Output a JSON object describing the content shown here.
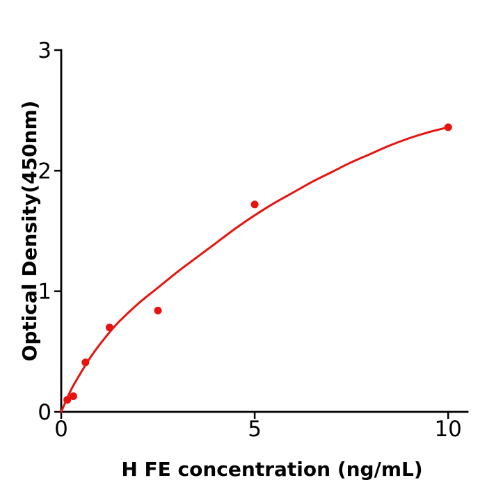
{
  "figure": {
    "background_color": "#ffffff",
    "axis_color": "#000000",
    "accent_color": "#e8120e"
  },
  "chart_data": {
    "type": "scatter",
    "title": "",
    "xlabel": "H  FE concentration (ng/mL)",
    "ylabel": "Optical Density(450nm)",
    "xlim": [
      0,
      10.5
    ],
    "ylim": [
      0,
      3
    ],
    "x_ticks": [
      0,
      5,
      10
    ],
    "y_ticks": [
      0,
      1,
      2,
      3
    ],
    "grid": false,
    "legend_position": "none",
    "series": [
      {
        "name": "standard-points",
        "type": "scatter",
        "color": "#e8120e",
        "marker": "circle",
        "marker_radius": 5.5,
        "x": [
          0.156,
          0.3125,
          0.625,
          1.25,
          2.5,
          5,
          10
        ],
        "y": [
          0.1,
          0.13,
          0.41,
          0.7,
          0.84,
          1.72,
          2.36
        ]
      },
      {
        "name": "fitted-curve",
        "type": "line",
        "color": "#e8120e",
        "line_width": 3,
        "x": [
          0,
          0.25,
          0.5,
          0.75,
          1.0,
          1.25,
          1.5,
          2.0,
          2.5,
          3.0,
          3.5,
          4.0,
          4.5,
          5.0,
          5.5,
          6.0,
          6.5,
          7.0,
          7.5,
          8.0,
          8.5,
          9.0,
          9.5,
          10.0
        ],
        "y": [
          0.0,
          0.18,
          0.32,
          0.45,
          0.56,
          0.66,
          0.75,
          0.9,
          1.03,
          1.16,
          1.28,
          1.4,
          1.52,
          1.63,
          1.73,
          1.82,
          1.91,
          1.99,
          2.07,
          2.14,
          2.21,
          2.27,
          2.32,
          2.36
        ]
      }
    ]
  }
}
